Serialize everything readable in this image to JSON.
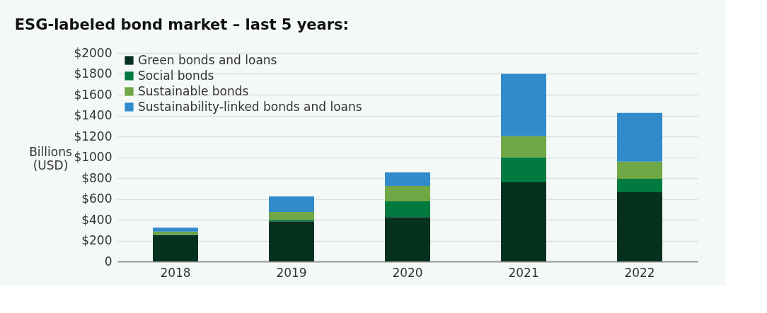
{
  "chart_data": {
    "type": "bar",
    "title": "ESG-labeled bond market – last 5 years:",
    "ylabel": "Billions (USD)",
    "categories": [
      "2018",
      "2019",
      "2020",
      "2021",
      "2022"
    ],
    "stacked": true,
    "series": [
      {
        "name": "Green bonds and loans",
        "color": "#07311f",
        "values": [
          254,
          385,
          426,
          760,
          664
        ]
      },
      {
        "name": "Social bonds",
        "color": "#017a40",
        "values": [
          5,
          14,
          150,
          238,
          130
        ]
      },
      {
        "name": "Sustainable bonds",
        "color": "#6fa844",
        "values": [
          27,
          75,
          150,
          204,
          163
        ]
      },
      {
        "name": "Sustainability-linked bonds and loans",
        "color": "#318bcb",
        "values": [
          38,
          150,
          129,
          598,
          469
        ]
      }
    ],
    "ylim": [
      0,
      2000
    ],
    "yticks": [
      {
        "value": 0,
        "label": "0"
      },
      {
        "value": 200,
        "label": "$200"
      },
      {
        "value": 400,
        "label": "$400"
      },
      {
        "value": 600,
        "label": "$600"
      },
      {
        "value": 800,
        "label": "$800"
      },
      {
        "value": 1000,
        "label": "$1000"
      },
      {
        "value": 1200,
        "label": "$1200"
      },
      {
        "value": 1400,
        "label": "$1400"
      },
      {
        "value": 1600,
        "label": "$1600"
      },
      {
        "value": 1800,
        "label": "$1800"
      },
      {
        "value": 2000,
        "label": "$2000"
      }
    ],
    "grid": "y",
    "legend": "top left"
  }
}
